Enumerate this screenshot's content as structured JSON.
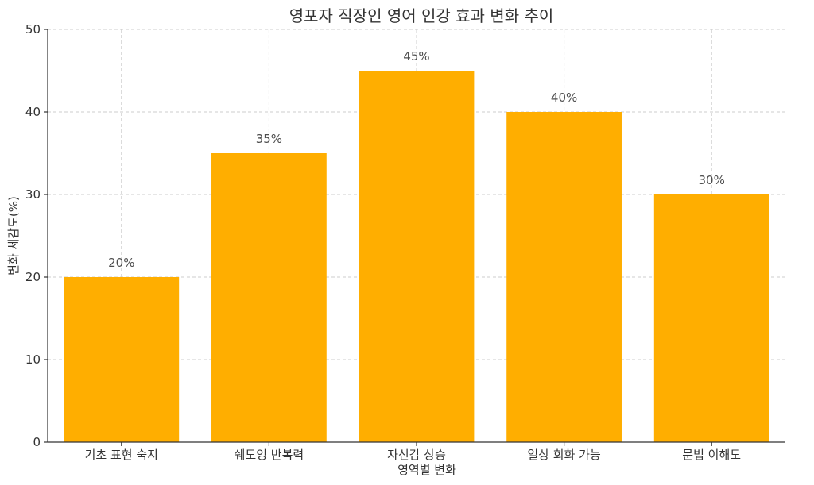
{
  "chart_data": {
    "type": "bar",
    "title": "영포자 직장인 영어 인강 효과 변화 추이",
    "xlabel": "영역별 변화",
    "ylabel": "변화 체감도(%)",
    "categories": [
      "기초 표현 숙지",
      "쉐도잉 반복력",
      "자신감 상승",
      "일상 회화 가능",
      "문법 이해도"
    ],
    "values": [
      20,
      35,
      45,
      40,
      30
    ],
    "value_labels": [
      "20%",
      "35%",
      "45%",
      "40%",
      "30%"
    ],
    "yticks": [
      0,
      10,
      20,
      30,
      40,
      50
    ],
    "ylim": [
      0,
      50
    ],
    "grid": true,
    "bar_color": "#FFAE00"
  }
}
